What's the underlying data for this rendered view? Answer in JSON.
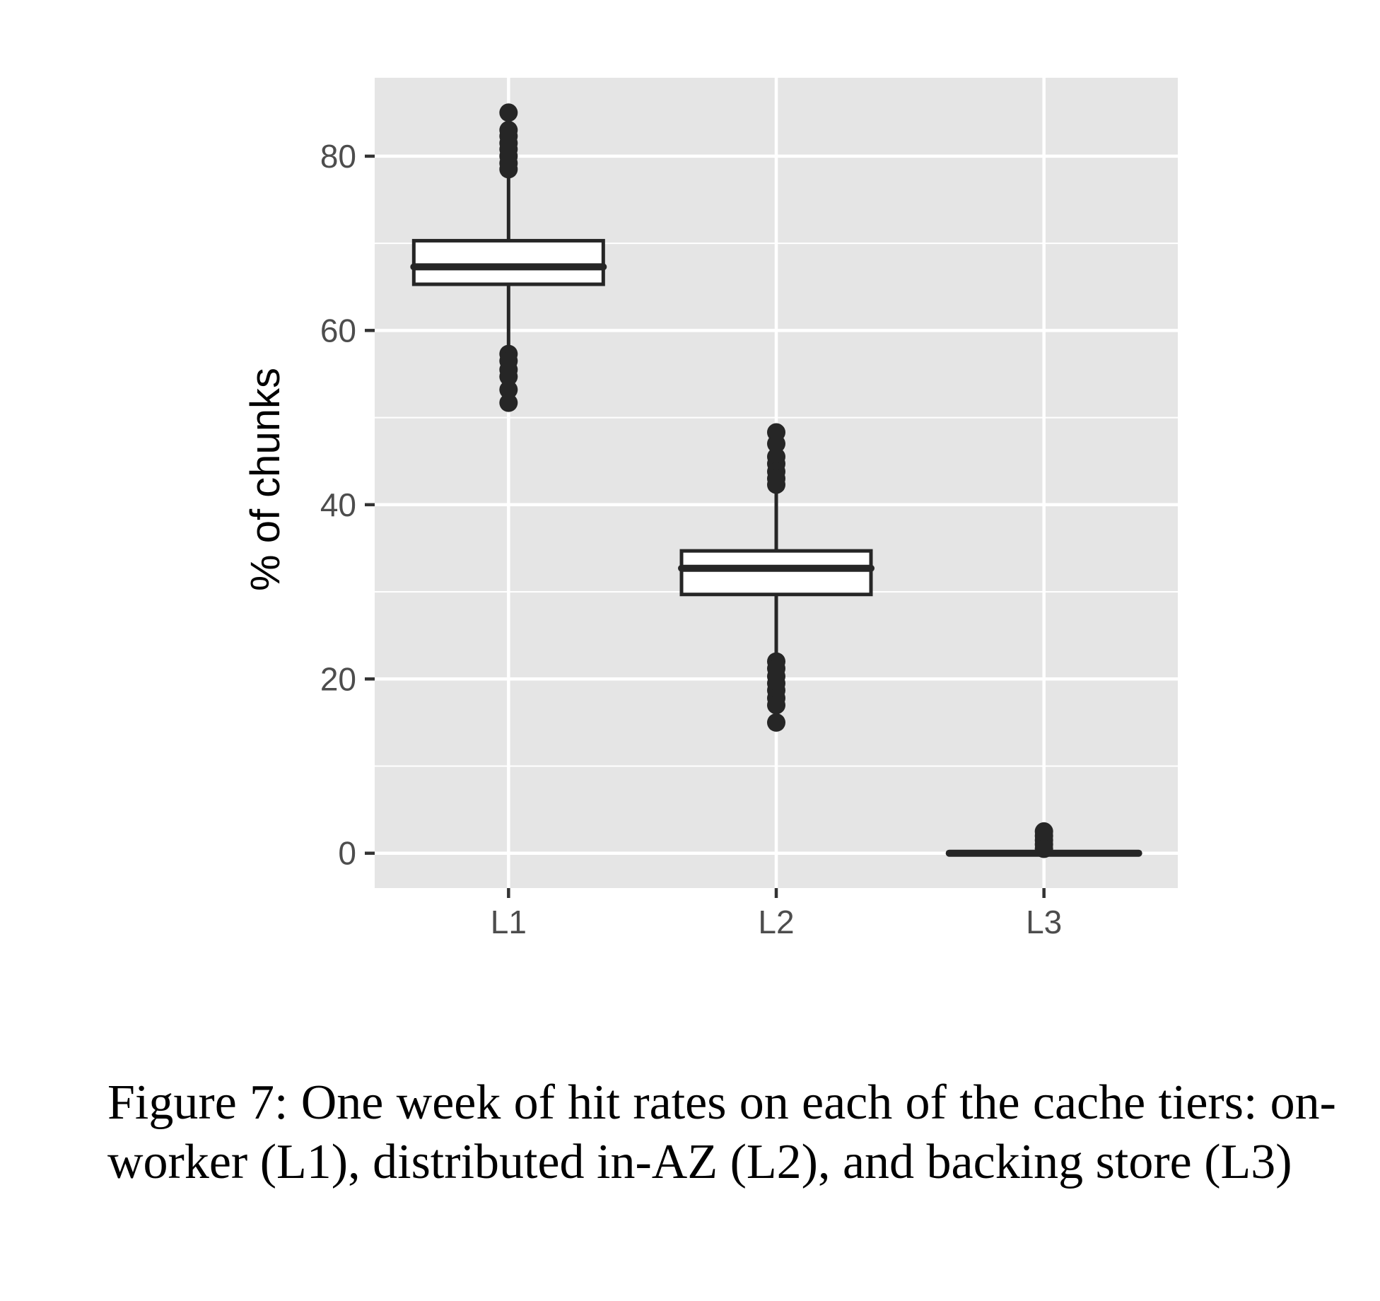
{
  "chart_data": {
    "type": "boxplot",
    "title": "",
    "xlabel": "",
    "ylabel": "% of chunks",
    "categories": [
      "L1",
      "L2",
      "L3"
    ],
    "ylim": [
      -4,
      89
    ],
    "y_ticks": [
      0,
      20,
      40,
      60,
      80
    ],
    "y_tick_labels": [
      "0",
      "20",
      "40",
      "60",
      "80"
    ],
    "grid": true,
    "legend": "none",
    "boxes": [
      {
        "category": "L1",
        "whisker_low": 57.5,
        "q1": 65.3,
        "median": 67.3,
        "q3": 70.3,
        "whisker_high": 78.0,
        "outliers": [
          85.0,
          83.0,
          82.3,
          81.5,
          80.8,
          80.0,
          79.2,
          78.5,
          57.3,
          56.5,
          55.5,
          54.7,
          53.2,
          51.7
        ]
      },
      {
        "category": "L2",
        "whisker_low": 22.5,
        "q1": 29.7,
        "median": 32.7,
        "q3": 34.7,
        "whisker_high": 42.0,
        "outliers": [
          48.3,
          47.0,
          45.5,
          44.7,
          43.8,
          43.0,
          42.3,
          22.0,
          21.2,
          20.3,
          19.5,
          18.7,
          17.8,
          17.0,
          15.0
        ]
      },
      {
        "category": "L3",
        "whisker_low": 0.0,
        "q1": 0.0,
        "median": 0.0,
        "q3": 0.1,
        "whisker_high": 0.2,
        "outliers": [
          2.5,
          2.0,
          1.5,
          1.0,
          0.5
        ]
      }
    ],
    "colors": {
      "panel_background": "#e5e5e5",
      "grid": "#ffffff",
      "box_fill": "#ffffff",
      "box_line": "#262626",
      "tick_text": "#4d4d4d"
    }
  },
  "caption": "Figure 7: One week of hit rates on each of the cache tiers: on-worker (L1), distributed in-AZ (L2), and backing store (L3)"
}
